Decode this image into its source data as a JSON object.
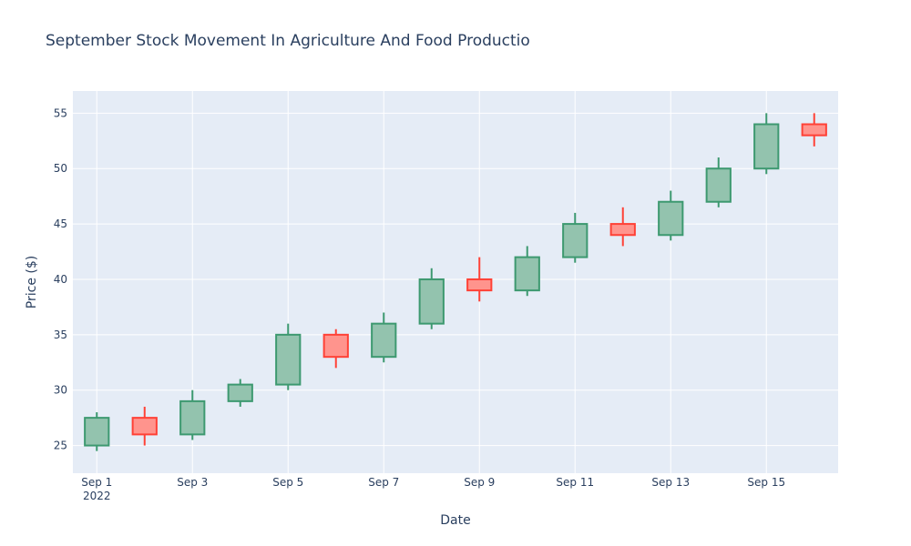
{
  "chart_data": {
    "type": "candlestick",
    "title": "September Stock Movement In Agriculture And Food Productio",
    "xlabel": "Date",
    "ylabel": "Price ($)",
    "ylim": [
      22.5,
      57
    ],
    "y_ticks": [
      25,
      30,
      35,
      40,
      45,
      50,
      55
    ],
    "x_ticks": [
      {
        "day": 1,
        "label": "Sep 1",
        "sublabel": "2022"
      },
      {
        "day": 3,
        "label": "Sep 3"
      },
      {
        "day": 5,
        "label": "Sep 5"
      },
      {
        "day": 7,
        "label": "Sep 7"
      },
      {
        "day": 9,
        "label": "Sep 9"
      },
      {
        "day": 11,
        "label": "Sep 11"
      },
      {
        "day": 13,
        "label": "Sep 13"
      },
      {
        "day": 15,
        "label": "Sep 15"
      }
    ],
    "x_range_days": [
      0.5,
      16.5
    ],
    "grid": true,
    "colors": {
      "increasing_line": "#3d9970",
      "increasing_fill": "#93c3ae",
      "decreasing_line": "#ff4136",
      "decreasing_fill": "#ff948d",
      "plot_bg": "#e5ecf6",
      "grid": "#ffffff",
      "text": "#2a3f5f"
    },
    "points": [
      {
        "date": "2022-09-01",
        "day": 1,
        "open": 25.0,
        "high": 28.0,
        "low": 24.5,
        "close": 27.5
      },
      {
        "date": "2022-09-02",
        "day": 2,
        "open": 27.5,
        "high": 28.5,
        "low": 25.0,
        "close": 26.0
      },
      {
        "date": "2022-09-03",
        "day": 3,
        "open": 26.0,
        "high": 30.0,
        "low": 25.5,
        "close": 29.0
      },
      {
        "date": "2022-09-04",
        "day": 4,
        "open": 29.0,
        "high": 31.0,
        "low": 28.5,
        "close": 30.5
      },
      {
        "date": "2022-09-05",
        "day": 5,
        "open": 30.5,
        "high": 36.0,
        "low": 30.0,
        "close": 35.0
      },
      {
        "date": "2022-09-06",
        "day": 6,
        "open": 35.0,
        "high": 35.5,
        "low": 32.0,
        "close": 33.0
      },
      {
        "date": "2022-09-07",
        "day": 7,
        "open": 33.0,
        "high": 37.0,
        "low": 32.5,
        "close": 36.0
      },
      {
        "date": "2022-09-08",
        "day": 8,
        "open": 36.0,
        "high": 41.0,
        "low": 35.5,
        "close": 40.0
      },
      {
        "date": "2022-09-09",
        "day": 9,
        "open": 40.0,
        "high": 42.0,
        "low": 38.0,
        "close": 39.0
      },
      {
        "date": "2022-09-10",
        "day": 10,
        "open": 39.0,
        "high": 43.0,
        "low": 38.5,
        "close": 42.0
      },
      {
        "date": "2022-09-11",
        "day": 11,
        "open": 42.0,
        "high": 46.0,
        "low": 41.5,
        "close": 45.0
      },
      {
        "date": "2022-09-12",
        "day": 12,
        "open": 45.0,
        "high": 46.5,
        "low": 43.0,
        "close": 44.0
      },
      {
        "date": "2022-09-13",
        "day": 13,
        "open": 44.0,
        "high": 48.0,
        "low": 43.5,
        "close": 47.0
      },
      {
        "date": "2022-09-14",
        "day": 14,
        "open": 47.0,
        "high": 51.0,
        "low": 46.5,
        "close": 50.0
      },
      {
        "date": "2022-09-15",
        "day": 15,
        "open": 50.0,
        "high": 55.0,
        "low": 49.5,
        "close": 54.0
      },
      {
        "date": "2022-09-16",
        "day": 16,
        "open": 54.0,
        "high": 55.0,
        "low": 52.0,
        "close": 53.0
      }
    ]
  }
}
